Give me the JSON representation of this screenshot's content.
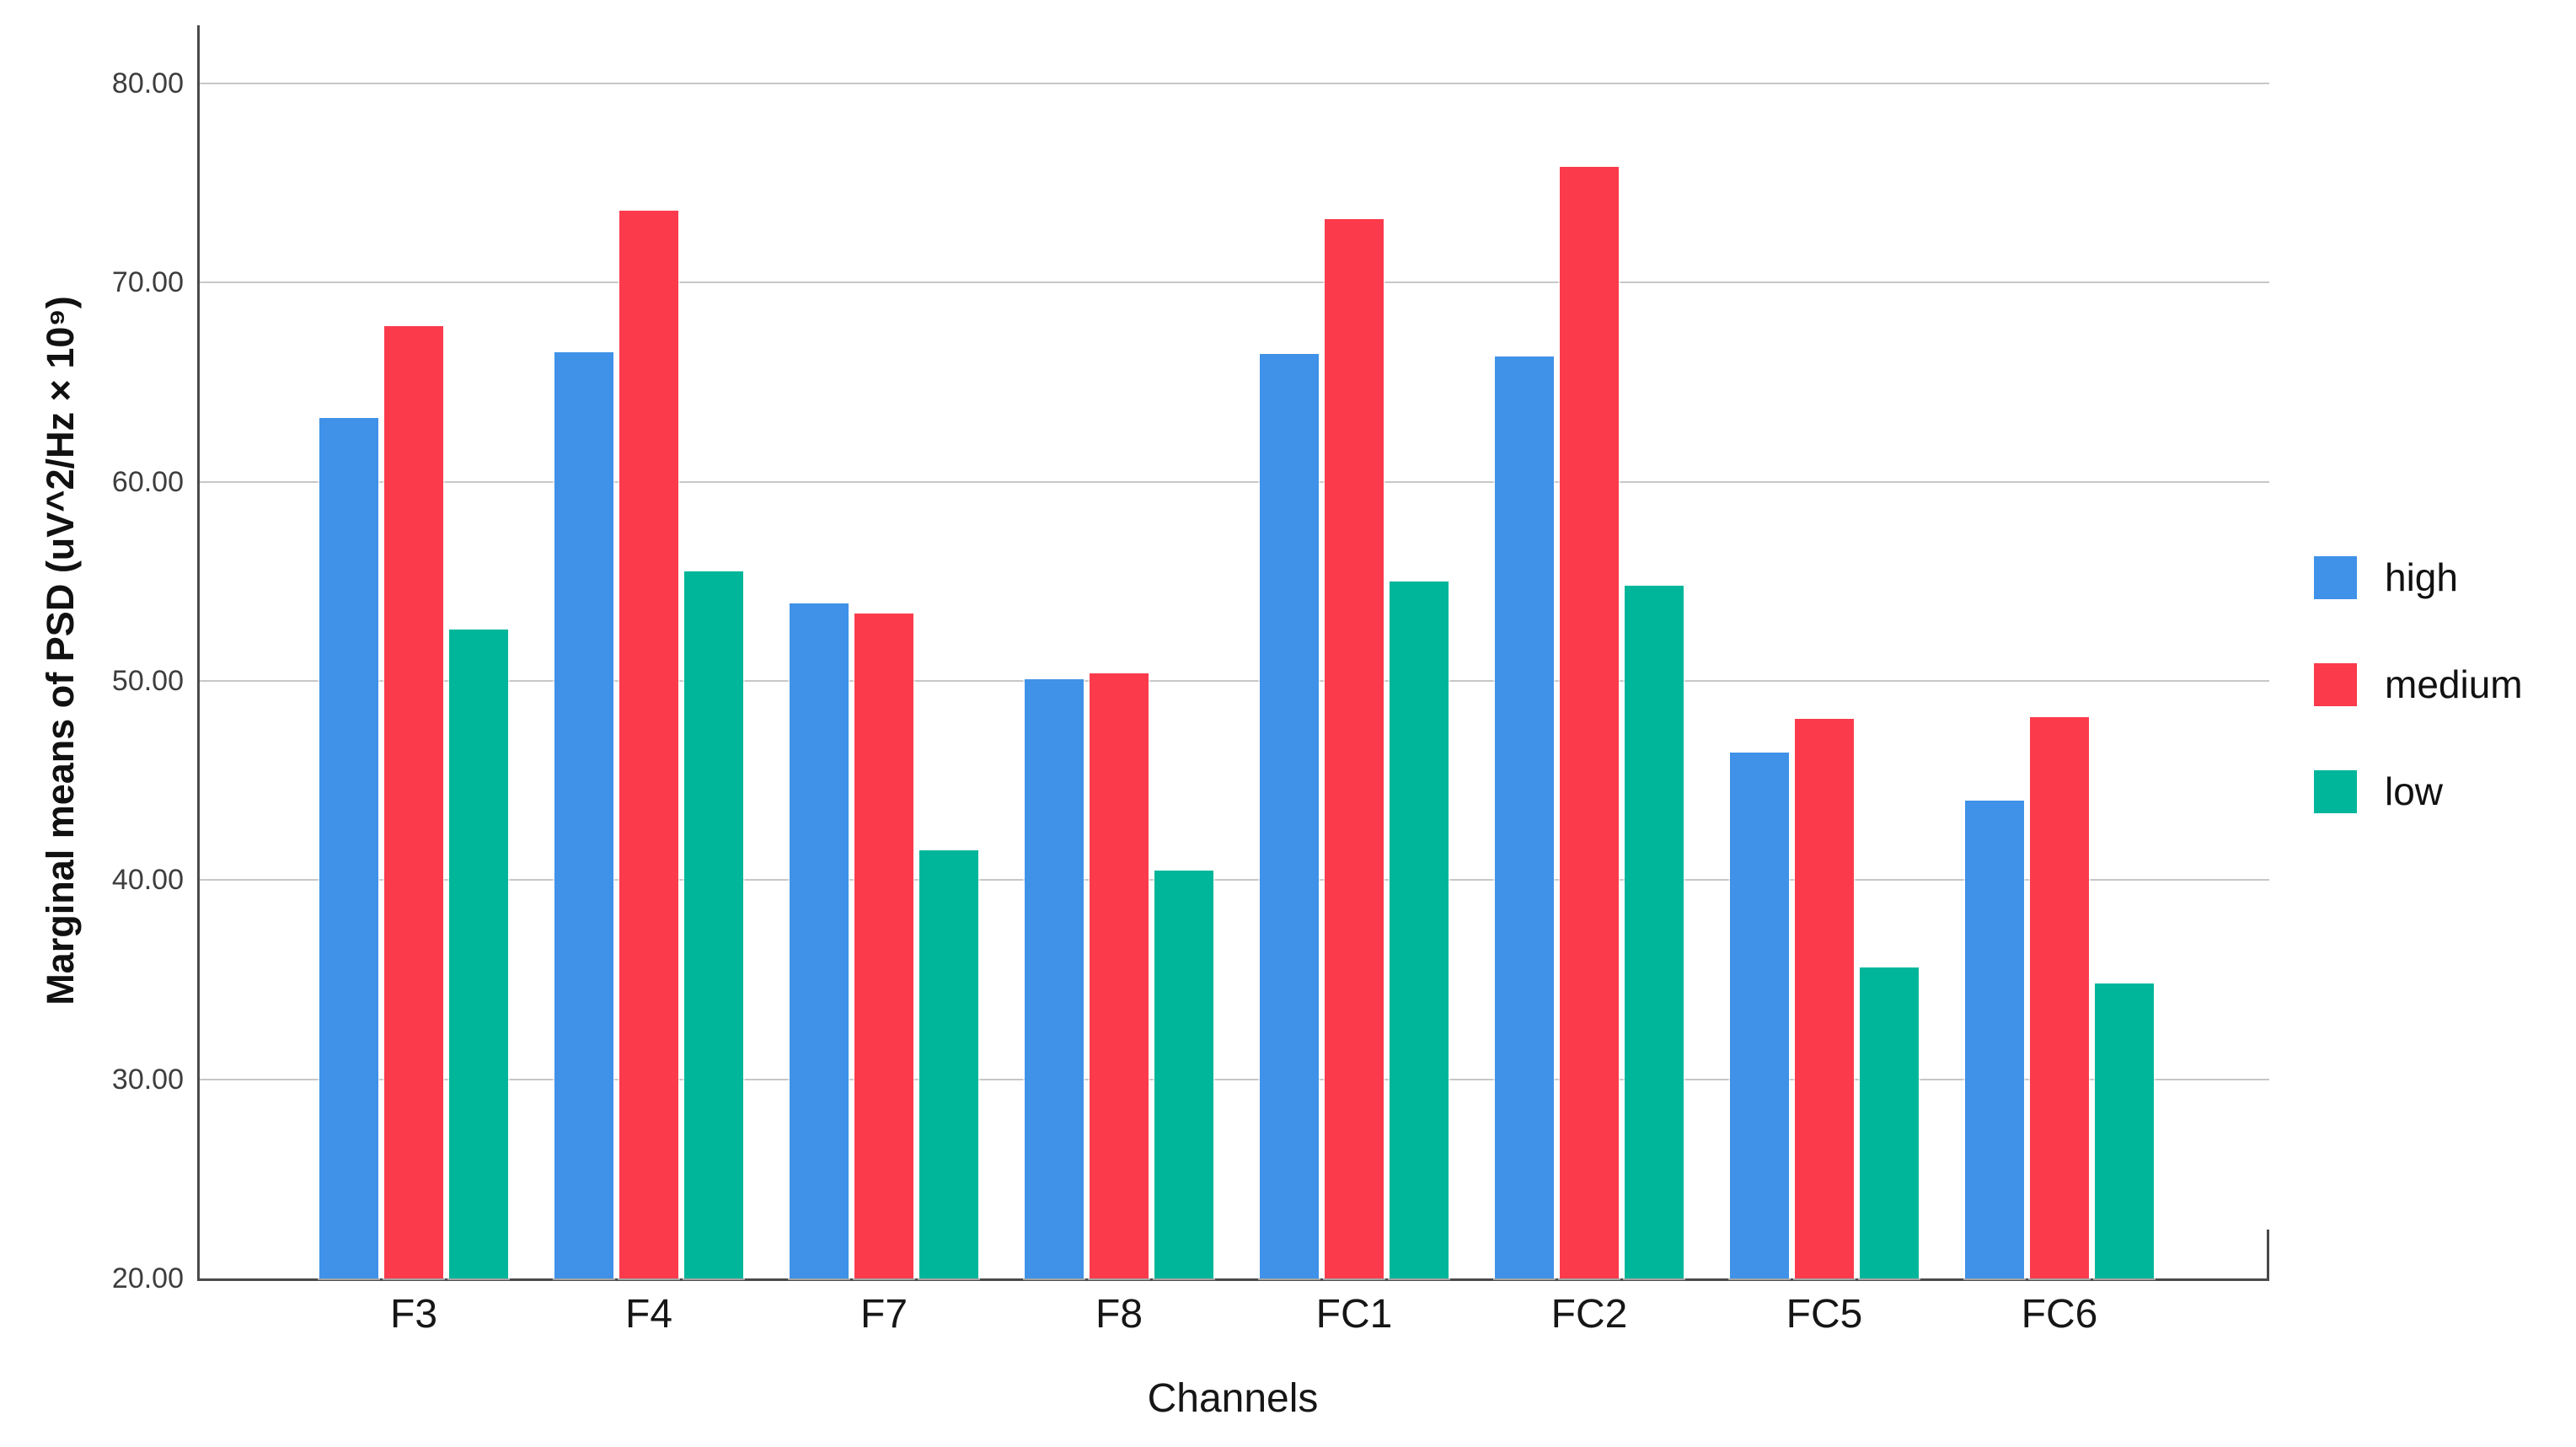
{
  "chart_data": {
    "type": "bar",
    "title": "",
    "xlabel": "Channels",
    "ylabel": "Marginal means of PSD (uV^2/Hz × 10⁹)",
    "categories": [
      "F3",
      "F4",
      "F7",
      "F8",
      "FC1",
      "FC2",
      "FC5",
      "FC6"
    ],
    "series": [
      {
        "name": "high",
        "color": "#3f92e8",
        "values": [
          63.2,
          66.5,
          53.9,
          50.1,
          66.4,
          66.3,
          46.4,
          44.0
        ]
      },
      {
        "name": "medium",
        "color": "#fb3b4c",
        "values": [
          67.8,
          73.6,
          53.4,
          50.4,
          73.2,
          75.8,
          48.1,
          48.2
        ]
      },
      {
        "name": "low",
        "color": "#00b69a",
        "values": [
          52.6,
          55.5,
          41.5,
          40.5,
          55.0,
          54.8,
          35.6,
          34.8
        ]
      }
    ],
    "ylim": [
      20,
      80
    ],
    "y_tick_step": 10,
    "y_tick_labels": [
      "20.00",
      "30.00",
      "40.00",
      "50.00",
      "60.00",
      "70.00",
      "80.00"
    ],
    "grid": "horizontal",
    "legend_position": "right"
  }
}
